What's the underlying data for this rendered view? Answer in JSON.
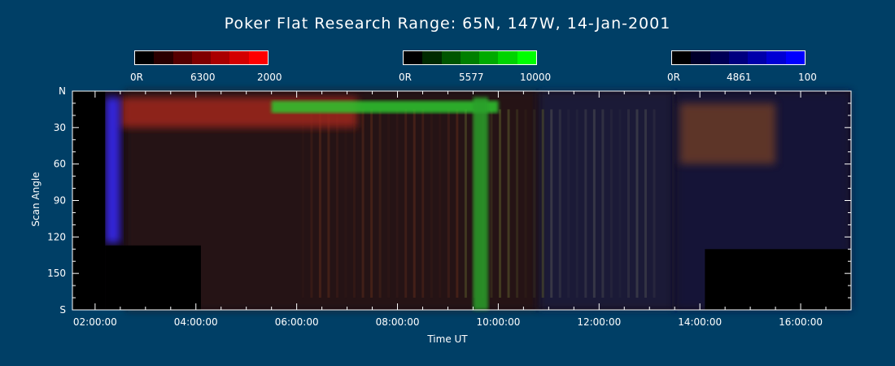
{
  "chart_data": {
    "type": "heatmap",
    "title": "Poker Flat Research Range: 65N, 147W, 14-Jan-2001",
    "xlabel": "Time UT",
    "ylabel": "Scan Angle",
    "x_ticks": [
      "02:00:00",
      "04:00:00",
      "06:00:00",
      "08:00:00",
      "10:00:00",
      "12:00:00",
      "14:00:00",
      "16:00:00"
    ],
    "x_tick_hours": [
      2,
      4,
      6,
      8,
      10,
      12,
      14,
      16
    ],
    "xlim_hours": [
      1.55,
      17.0
    ],
    "y_ticks": [
      "N",
      "30",
      "60",
      "90",
      "120",
      "150",
      "S"
    ],
    "y_tick_values": [
      0,
      30,
      60,
      90,
      120,
      150,
      180
    ],
    "ylim": [
      0,
      180
    ],
    "colorbars": [
      {
        "name": "6300",
        "min_label": "0R",
        "mid_label": "6300",
        "max_label": "2000",
        "colors": [
          "#000000",
          "#2a0000",
          "#550000",
          "#7f0000",
          "#aa0000",
          "#d40000",
          "#ff0000"
        ]
      },
      {
        "name": "5577",
        "min_label": "0R",
        "mid_label": "5577",
        "max_label": "10000",
        "colors": [
          "#000000",
          "#002a00",
          "#005500",
          "#007f00",
          "#00aa00",
          "#00d400",
          "#00ff00"
        ]
      },
      {
        "name": "4861",
        "min_label": "0R",
        "mid_label": "4861",
        "max_label": "100",
        "colors": [
          "#000000",
          "#00002a",
          "#000055",
          "#00007f",
          "#0000aa",
          "#0000d4",
          "#0000ff"
        ]
      }
    ],
    "features": [
      {
        "label": "red-6300-band",
        "t_start": 2.5,
        "t_end": 7.2,
        "angle_start": 5,
        "angle_end": 30,
        "color": "#a0281e"
      },
      {
        "label": "green-5577-arc",
        "t_start": 5.5,
        "t_end": 10.0,
        "angle_start": 8,
        "angle_end": 18,
        "color": "#2ec62e"
      },
      {
        "label": "green-vertical-streak",
        "t_start": 9.5,
        "t_end": 9.8,
        "angle_start": 5,
        "angle_end": 180,
        "color": "#2aa02a"
      },
      {
        "label": "blue-4861-patch",
        "t_start": 2.2,
        "t_end": 2.5,
        "angle_start": 5,
        "angle_end": 125,
        "color": "#3a2aff"
      },
      {
        "label": "late-red-patch",
        "t_start": 13.6,
        "t_end": 15.5,
        "angle_start": 10,
        "angle_end": 60,
        "color": "#6a3a28"
      }
    ]
  }
}
